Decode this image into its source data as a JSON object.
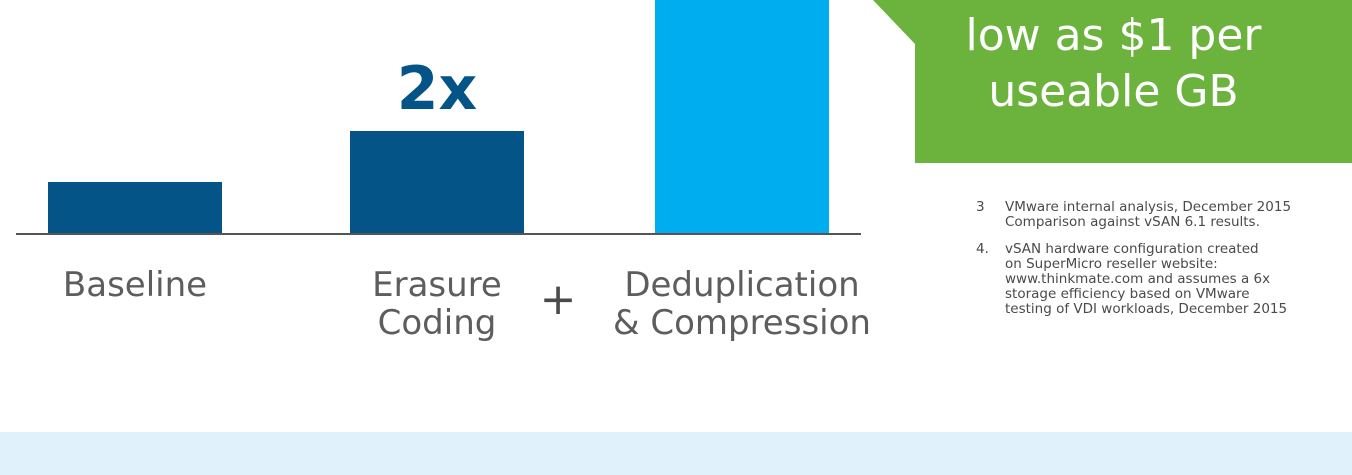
{
  "chart_data": {
    "type": "bar",
    "categories": [
      "Baseline",
      "Erasure\nCoding",
      "Deduplication\n& Compression"
    ],
    "values": [
      1,
      2,
      5
    ],
    "bar_colors": [
      "#045487",
      "#045487",
      "#00adef"
    ],
    "bar_labels": [
      "",
      "2x",
      ""
    ],
    "title": "",
    "xlabel": "",
    "ylabel": "",
    "ylim": [
      0,
      5
    ],
    "grid": false,
    "legend": "none"
  },
  "operator": "+",
  "callout": {
    "text": "low as $1 per\nuseable GB",
    "color": "#6cb33e"
  },
  "footnotes": [
    {
      "num": "3",
      "text": "VMware internal analysis, December 2015\nComparison against vSAN 6.1 results."
    },
    {
      "num": "4.",
      "text": "vSAN hardware configuration created\non SuperMicro reseller website:\nwww.thinkmate.com and assumes a 6x\nstorage efficiency based on VMware\ntesting of VDI workloads, December 2015"
    }
  ],
  "colors": {
    "axis": "#555555",
    "label": "#5d5d5d",
    "multiplier": "#045487",
    "band": "#e1f1fb"
  }
}
